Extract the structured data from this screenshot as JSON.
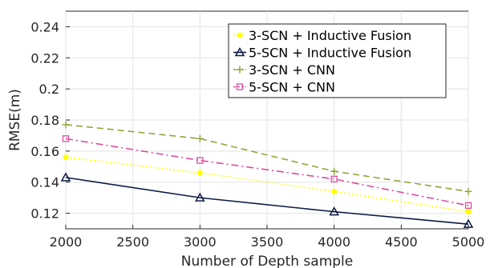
{
  "chart_data": {
    "type": "line",
    "xlabel": "Number of Depth sample",
    "ylabel": "RMSE(m)",
    "xlim": [
      2000,
      5000
    ],
    "ylim": [
      0.11,
      0.25
    ],
    "x_ticks": [
      2000,
      2500,
      3000,
      3500,
      4000,
      4500,
      5000
    ],
    "y_ticks": [
      0.12,
      0.14,
      0.16,
      0.18,
      0.2,
      0.22,
      0.24
    ],
    "x": [
      2000,
      3000,
      4000,
      5000
    ],
    "grid": true,
    "legend_position": "top-right",
    "series": [
      {
        "name": "3-SCN + Inductive Fusion",
        "values": [
          0.156,
          0.146,
          0.134,
          0.121
        ],
        "color": "#ffff00",
        "line_style": "dotted",
        "marker": "circle"
      },
      {
        "name": "5-SCN + Inductive Fusion",
        "values": [
          0.143,
          0.13,
          0.121,
          0.113
        ],
        "color": "#0b1a45",
        "line_style": "solid",
        "marker": "triangle"
      },
      {
        "name": "3-SCN + CNN",
        "values": [
          0.177,
          0.168,
          0.147,
          0.134
        ],
        "color": "#8fa63a",
        "line_style": "dashed",
        "marker": "plus"
      },
      {
        "name": "5-SCN + CNN",
        "values": [
          0.168,
          0.154,
          0.142,
          0.125
        ],
        "color": "#d94fa0",
        "line_style": "dashdot",
        "marker": "square"
      }
    ]
  }
}
